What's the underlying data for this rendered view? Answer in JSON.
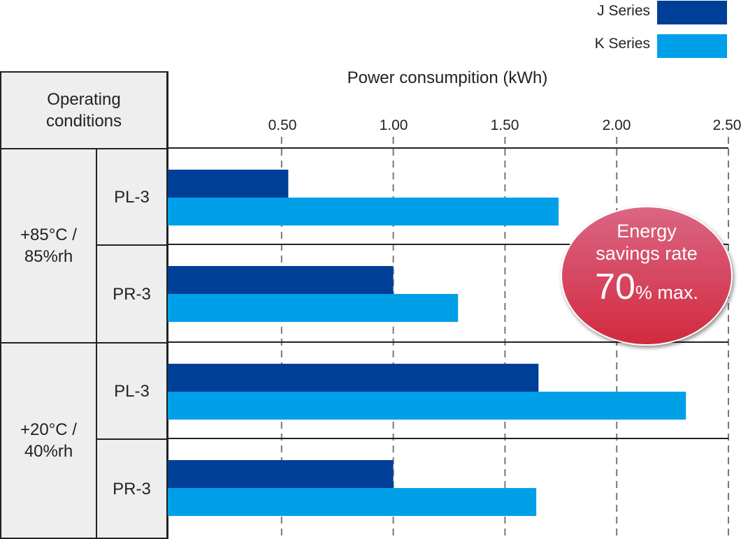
{
  "chart_data": {
    "type": "bar",
    "orientation": "horizontal",
    "title": "Power consumpition (kWh)",
    "xlabel": "Power consumpition (kWh)",
    "xlim": [
      0,
      2.5
    ],
    "x_ticks": [
      "0.50",
      "1.00",
      "1.50",
      "2.00",
      "2.50"
    ],
    "x_tick_values": [
      0.5,
      1.0,
      1.5,
      2.0,
      2.5
    ],
    "grid": "vertical dashed",
    "legend_position": "top-right",
    "row_header": "Operating conditions",
    "groups": [
      {
        "condition": "+85°C / 85%rh",
        "condition_lines": [
          "+85°C /",
          "85%rh"
        ],
        "categories": [
          "PL-3",
          "PR-3"
        ]
      },
      {
        "condition": "+20°C / 40%rh",
        "condition_lines": [
          "+20°C /",
          "40%rh"
        ],
        "categories": [
          "PL-3",
          "PR-3"
        ]
      }
    ],
    "categories": [
      "+85°C/85%rh PL-3",
      "+85°C/85%rh PR-3",
      "+20°C/40%rh PL-3",
      "+20°C/40%rh PR-3"
    ],
    "series": [
      {
        "name": "J Series",
        "color": "#003f98",
        "values": [
          0.53,
          1.0,
          1.65,
          1.0
        ]
      },
      {
        "name": "K Series",
        "color": "#00a0e9",
        "values": [
          1.74,
          1.29,
          2.31,
          1.64
        ]
      }
    ],
    "annotation": {
      "line1": "Energy",
      "line2": "savings rate",
      "big": "70",
      "small": "% max."
    }
  }
}
